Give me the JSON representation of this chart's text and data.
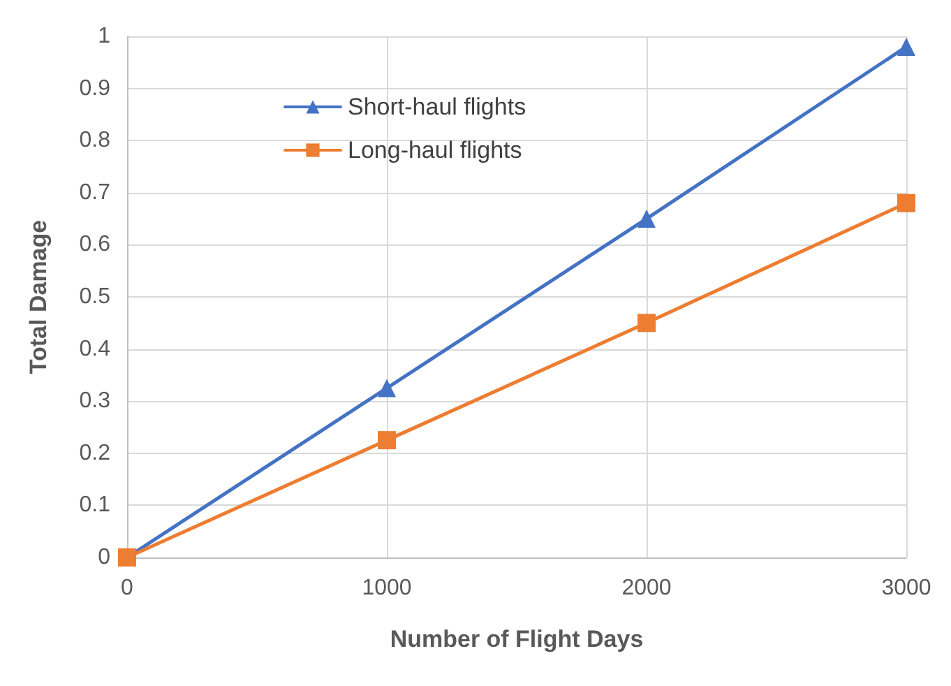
{
  "chart_data": {
    "type": "line",
    "xlabel": "Number of Flight Days",
    "ylabel": "Total Damage",
    "x": [
      0,
      1000,
      2000,
      3000
    ],
    "series": [
      {
        "name": "Short-haul flights",
        "color": "#4472c4",
        "marker": "triangle",
        "values": [
          0,
          0.325,
          0.65,
          0.98
        ]
      },
      {
        "name": "Long-haul flights",
        "color": "#ed7d31",
        "marker": "square",
        "values": [
          0,
          0.225,
          0.45,
          0.68
        ]
      }
    ],
    "xlim": [
      0,
      3000
    ],
    "xticks": [
      0,
      1000,
      2000,
      3000
    ],
    "ylim": [
      0,
      1
    ],
    "yticks": [
      0,
      0.1,
      0.2,
      0.3,
      0.4,
      0.5,
      0.6,
      0.7,
      0.8,
      0.9,
      1
    ],
    "grid": true,
    "legend": "top left",
    "line_style": "solid"
  }
}
